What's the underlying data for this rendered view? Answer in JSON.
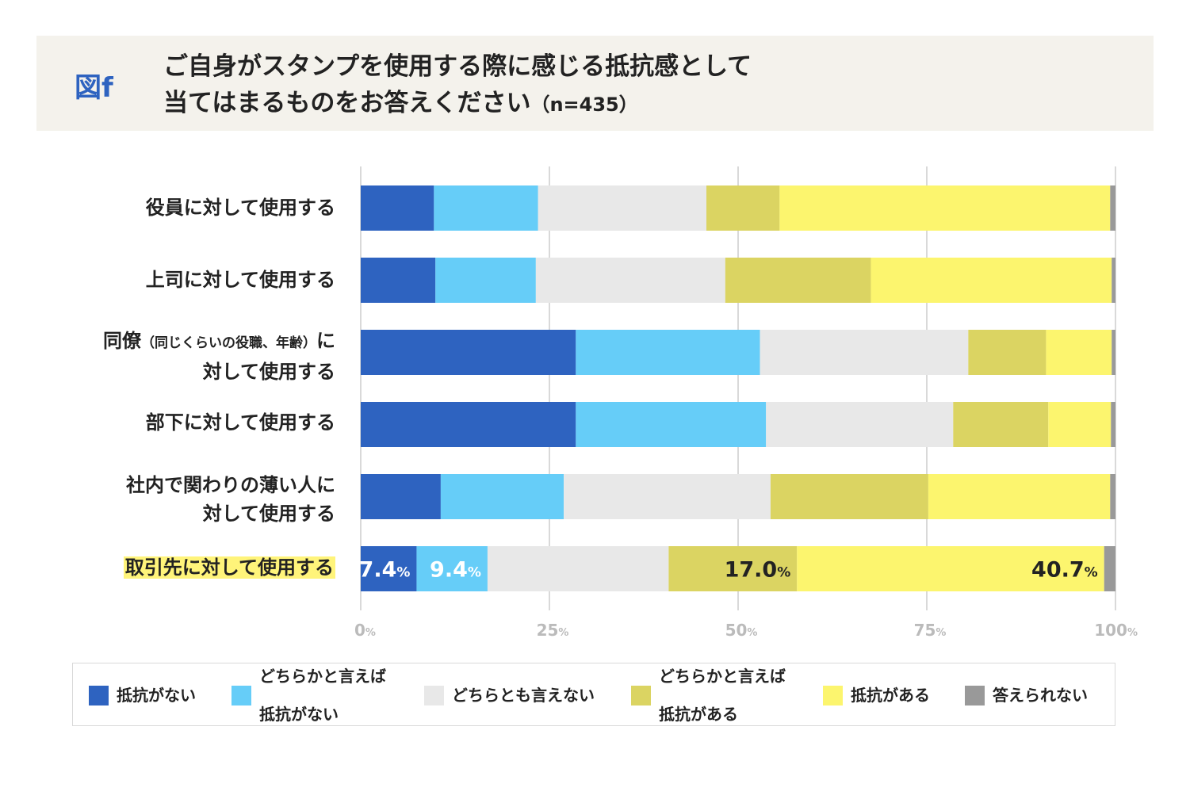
{
  "header": {
    "fig_label": "図f",
    "title_line1": "ご自身がスタンプを使用する際に感じる抵抗感として",
    "title_line2": "当てはまるものをお答えください",
    "sample_size": "（n=435）"
  },
  "colors": {
    "series": [
      "#2e63c0",
      "#66cdf8",
      "#e8e8e8",
      "#dbd462",
      "#fcf56e",
      "#999999"
    ],
    "grid": "#d9d9d9",
    "tick": "#bbbbbb",
    "header_bg": "#f4f2ec",
    "highlight": "#fff47a"
  },
  "chart_data": {
    "type": "bar",
    "orientation": "horizontal",
    "stacked": true,
    "xlim": [
      0,
      100
    ],
    "x_ticks": [
      "0",
      "25",
      "50",
      "75",
      "100"
    ],
    "tick_unit": "%",
    "categories": [
      "役員に対して使用する",
      "上司に対して使用する",
      "同僚（同じくらいの役職、年齢）に対して使用する",
      "部下に対して使用する",
      "社内で関わりの薄い人に対して使用する",
      "取引先に対して使用する"
    ],
    "series": [
      {
        "name": "抵抗がない",
        "values": [
          9.7,
          9.9,
          28.5,
          28.5,
          10.6,
          7.4
        ]
      },
      {
        "name": "どちらかと言えば抵抗がない",
        "values": [
          13.8,
          13.3,
          24.4,
          25.2,
          16.3,
          9.4
        ]
      },
      {
        "name": "どちらとも言えない",
        "values": [
          22.3,
          25.1,
          27.6,
          24.8,
          27.4,
          24.0
        ]
      },
      {
        "name": "どちらかと言えば抵抗がある",
        "values": [
          9.7,
          19.3,
          10.3,
          12.6,
          20.9,
          17.0
        ]
      },
      {
        "name": "抵抗がある",
        "values": [
          43.8,
          31.9,
          8.7,
          8.3,
          24.1,
          40.7
        ]
      },
      {
        "name": "答えられない",
        "values": [
          0.7,
          0.5,
          0.5,
          0.6,
          0.7,
          1.5
        ]
      }
    ],
    "data_labels": [
      {
        "category_index": 5,
        "series_index": 0,
        "value": "7.4",
        "unit": "%"
      },
      {
        "category_index": 5,
        "series_index": 1,
        "value": "9.4",
        "unit": "%"
      },
      {
        "category_index": 5,
        "series_index": 3,
        "value": "17.0",
        "unit": "%"
      },
      {
        "category_index": 5,
        "series_index": 4,
        "value": "40.7",
        "unit": "%"
      }
    ],
    "highlighted_category": 5
  },
  "row_labels": [
    {
      "line1": "役員に対して使用する"
    },
    {
      "line1": "上司に対して使用する"
    },
    {
      "line1_main": "同僚",
      "line1_small": "（同じくらいの役職、年齢）",
      "line1_end": "に",
      "line2": "対して使用する"
    },
    {
      "line1": "部下に対して使用する"
    },
    {
      "line1": "社内で関わりの薄い人に",
      "line2": "対して使用する"
    },
    {
      "line1": "取引先に対して使用する"
    }
  ],
  "legend": [
    {
      "label": "抵抗がない"
    },
    {
      "label_line1": "どちらかと言えば",
      "label_line2": "抵抗がない"
    },
    {
      "label": "どちらとも言えない"
    },
    {
      "label_line1": "どちらかと言えば",
      "label_line2": "抵抗がある"
    },
    {
      "label": "抵抗がある"
    },
    {
      "label": "答えられない"
    }
  ]
}
